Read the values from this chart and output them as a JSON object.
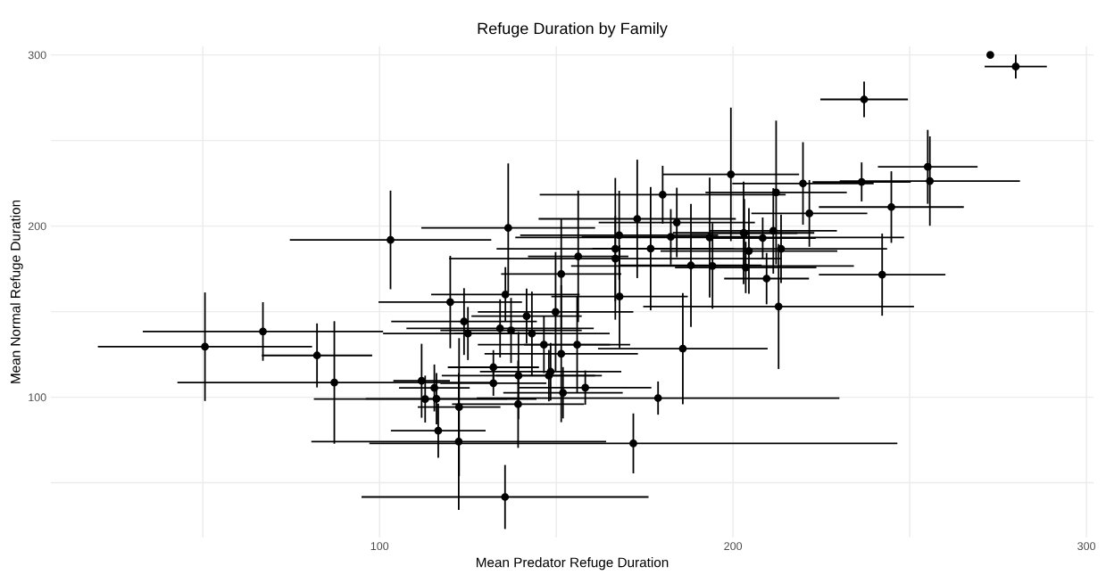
{
  "chart_data": {
    "type": "scatter",
    "title": "Refuge Duration by Family",
    "xlabel": "Mean Predator Refuge Duration",
    "ylabel": "Mean Normal Refuge Duration",
    "xlim": [
      7,
      302
    ],
    "ylim": [
      18,
      305
    ],
    "xticks": [
      {
        "value": 50,
        "label": null
      },
      100,
      {
        "value": 150,
        "label": null
      },
      200,
      {
        "value": 250,
        "label": null
      },
      300
    ],
    "yticks": [
      {
        "value": 50,
        "label": null
      },
      100,
      {
        "value": 150,
        "label": null
      },
      200,
      {
        "value": 250,
        "label": null
      },
      300
    ],
    "grid": true,
    "marker": "circle",
    "series": [
      {
        "color": "#000000",
        "x": [
          50.6,
          67.0,
          82.3,
          87.2,
          103.1,
          136.4,
          156.2,
          151.4,
          166.7,
          166.7,
          167.8,
          172.9,
          180.1,
          184.1,
          182.4,
          176.7,
          188.1,
          193.4,
          194.2,
          199.4,
          203.2,
          203.6,
          272.8,
          280.0,
          237.1,
          255.1,
          255.7,
          236.4,
          244.8,
          242.2,
          219.8,
          221.6,
          212.2,
          211.4,
          208.4,
          204.5,
          213.6,
          209.5,
          203.0,
          212.9,
          120.0,
          135.6,
          123.9,
          125.0,
          134.1,
          137.2,
          141.6,
          143.1,
          149.8,
          146.5,
          155.9,
          151.4,
          167.9,
          132.2,
          132.2,
          139.3,
          148.4,
          147.9,
          151.9,
          158.2,
          111.9,
          115.5,
          112.9,
          116.1,
          122.5,
          139.2,
          116.6,
          122.4,
          135.5,
          171.8,
          178.8,
          185.8
        ],
        "values": [
          129.5,
          138.4,
          124.4,
          108.6,
          191.9,
          198.9,
          182.3,
          172.0,
          186.7,
          181.0,
          194.6,
          204.2,
          218.3,
          202.1,
          193.7,
          186.8,
          177.0,
          193.3,
          176.7,
          230.2,
          195.8,
          175.8,
          300.0,
          293.2,
          274.0,
          234.6,
          226.3,
          225.8,
          211.1,
          171.6,
          224.9,
          207.4,
          219.6,
          197.2,
          193.0,
          185.4,
          186.7,
          169.3,
          196.0,
          153.0,
          155.6,
          160.0,
          144.2,
          137.2,
          140.2,
          139.0,
          147.4,
          137.2,
          149.8,
          130.7,
          130.7,
          125.4,
          158.8,
          117.5,
          108.2,
          112.6,
          114.9,
          112.6,
          102.6,
          105.6,
          109.6,
          105.4,
          98.9,
          99.1,
          94.2,
          95.9,
          80.4,
          74.1,
          41.7,
          73.0,
          99.5,
          128.4
        ],
        "xerrors": [
          30.3,
          34.0,
          15.6,
          44.4,
          28.5,
          24.6,
          14.2,
          17.0,
          33.6,
          47.0,
          28.0,
          27.9,
          34.8,
          22.1,
          25.2,
          16.5,
          20.0,
          55.0,
          40.0,
          19.3,
          15.0,
          20.0,
          null,
          8.8,
          12.4,
          14.1,
          25.5,
          13.9,
          20.5,
          17.9,
          20.0,
          16.4,
          20.0,
          18.0,
          15.0,
          25.0,
          30.0,
          12.0,
          20.0,
          38.3,
          20.3,
          21.0,
          20.6,
          24.0,
          26.5,
          20.0,
          15.6,
          22.0,
          22.0,
          18.7,
          15.0,
          21.7,
          19.3,
          12.9,
          15.0,
          21.7,
          20.0,
          15.0,
          16.9,
          18.7,
          8.0,
          10.0,
          31.5,
          20.0,
          11.7,
          18.7,
          13.4,
          41.7,
          40.6,
          74.7,
          51.3,
          24.0
        ],
        "errors": [
          31.7,
          17.1,
          18.7,
          35.8,
          28.8,
          37.7,
          38.4,
          32.0,
          41.4,
          25.0,
          26.0,
          34.6,
          16.9,
          20.3,
          16.2,
          36.0,
          36.0,
          35.0,
          25.0,
          39.0,
          20.0,
          15.0,
          null,
          7.0,
          10.4,
          21.6,
          26.1,
          11.4,
          20.9,
          24.0,
          24.1,
          19.5,
          42.0,
          25.0,
          12.0,
          25.0,
          20.0,
          15.0,
          30.0,
          36.5,
          27.0,
          16.0,
          19.5,
          15.5,
          17.0,
          19.0,
          16.0,
          24.5,
          35.0,
          16.6,
          28.0,
          40.0,
          30.0,
          10.0,
          7.4,
          25.5,
          16.8,
          15.0,
          15.0,
          10.0,
          21.6,
          13.7,
          13.7,
          15.0,
          40.3,
          25.5,
          15.8,
          40.0,
          18.7,
          17.5,
          9.7,
          32.5
        ]
      }
    ]
  }
}
